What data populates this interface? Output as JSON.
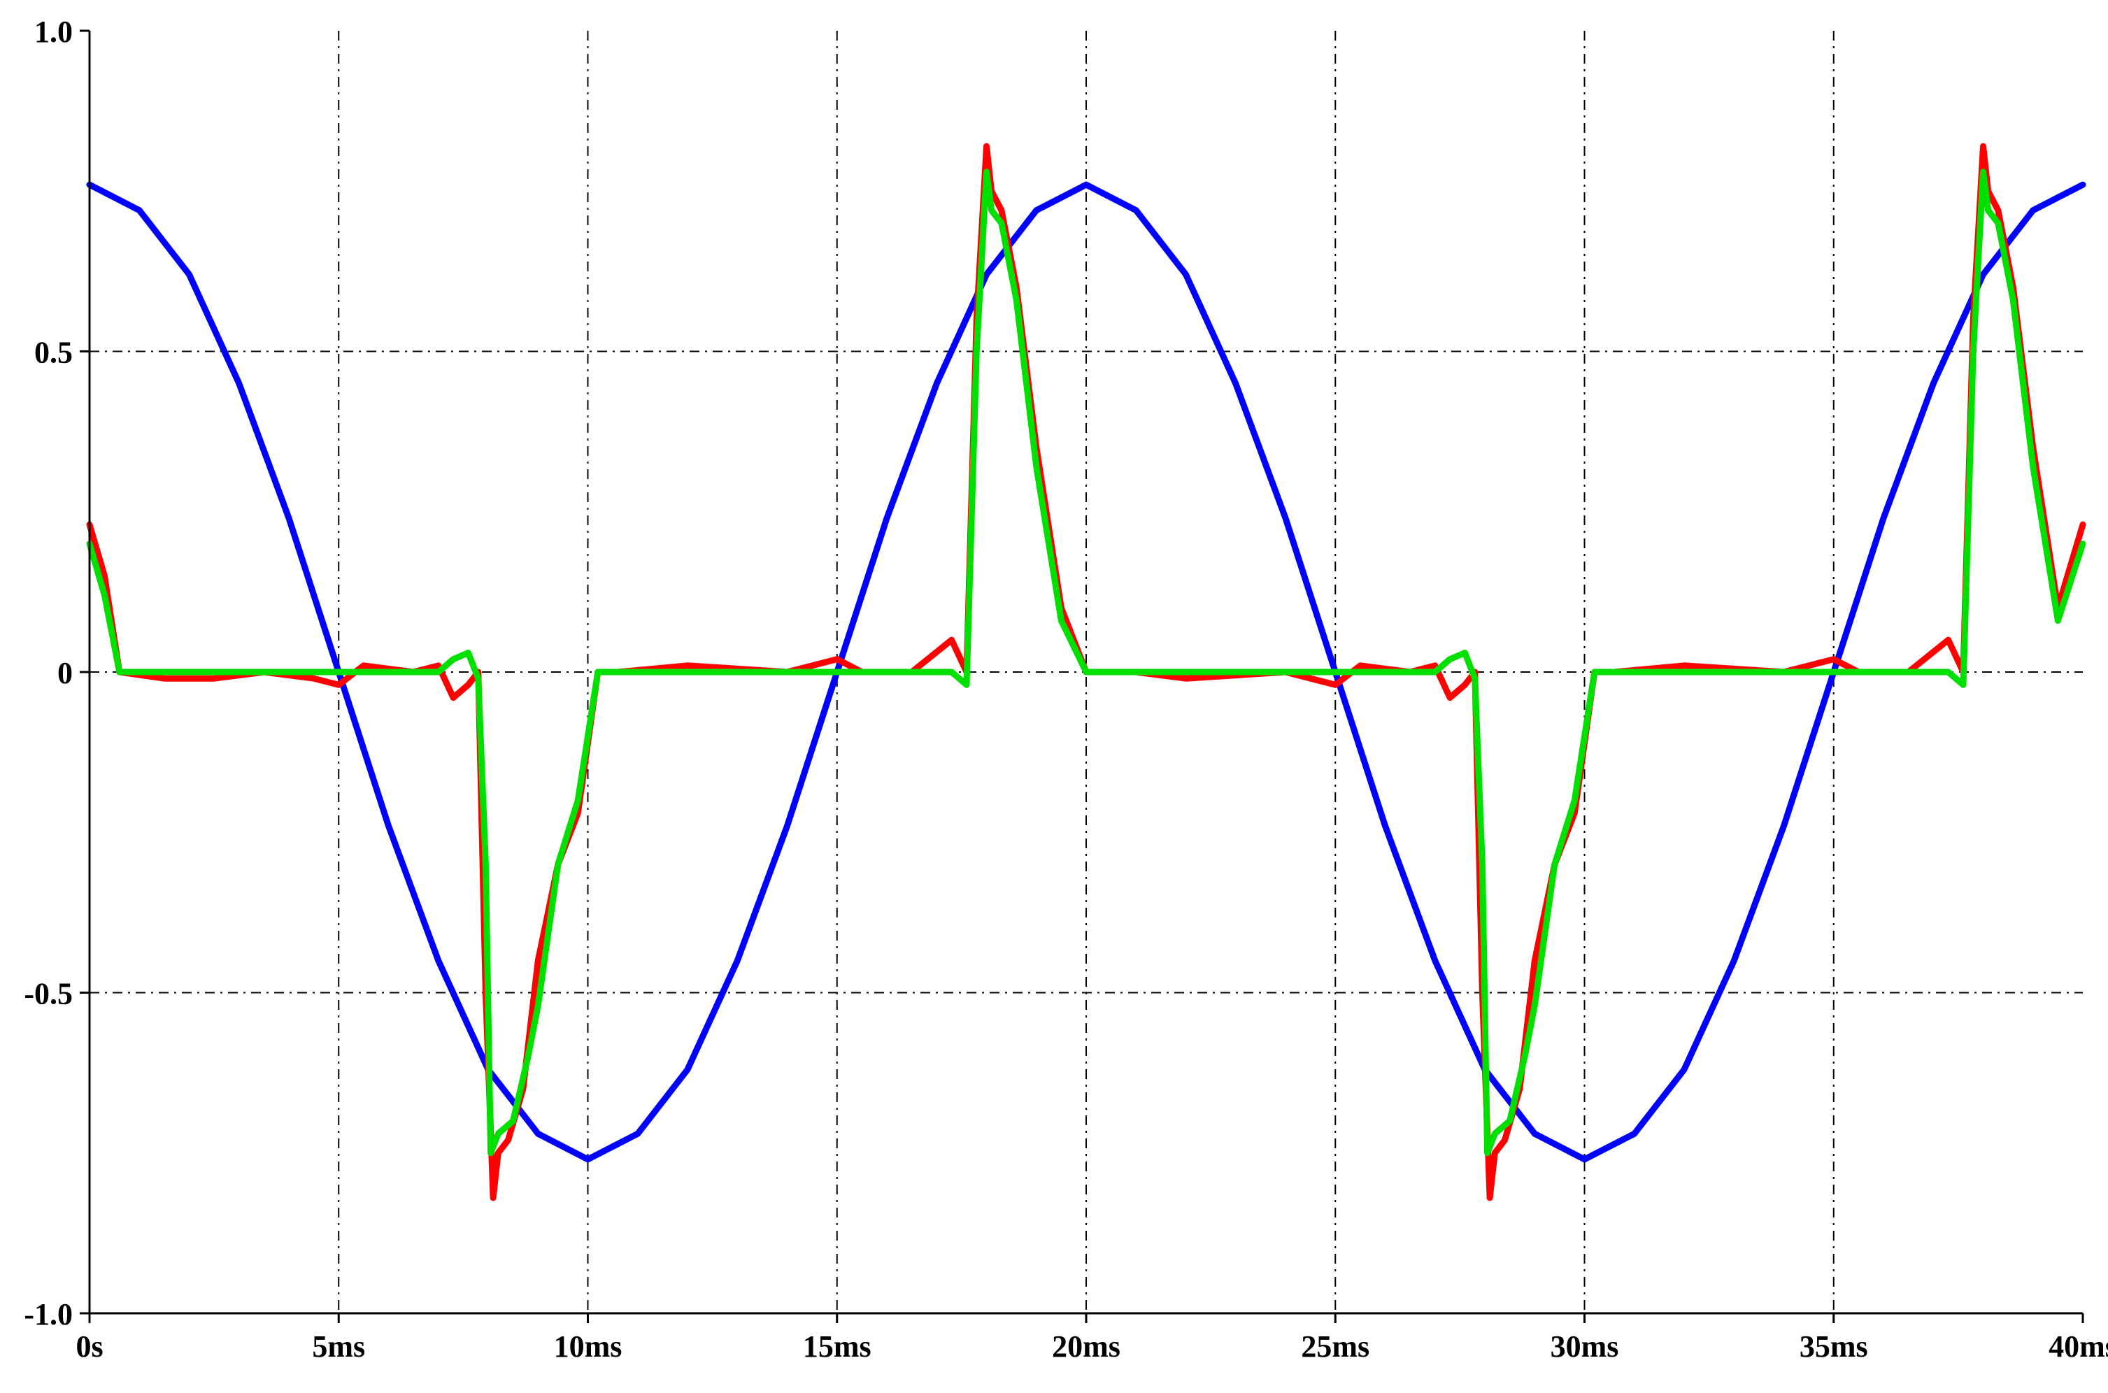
{
  "chart_data": {
    "type": "line",
    "title": "",
    "xlabel": "",
    "ylabel": "",
    "xlim": [
      0,
      40
    ],
    "ylim": [
      -1.0,
      1.0
    ],
    "x_ticks": [
      {
        "value": 0,
        "label": "0s"
      },
      {
        "value": 5,
        "label": "5ms"
      },
      {
        "value": 10,
        "label": "10ms"
      },
      {
        "value": 15,
        "label": "15ms"
      },
      {
        "value": 20,
        "label": "20ms"
      },
      {
        "value": 25,
        "label": "25ms"
      },
      {
        "value": 30,
        "label": "30ms"
      },
      {
        "value": 35,
        "label": "35ms"
      },
      {
        "value": 40,
        "label": "40ms"
      }
    ],
    "y_ticks": [
      {
        "value": 1.0,
        "label": "1.0"
      },
      {
        "value": 0.5,
        "label": "0.5"
      },
      {
        "value": 0,
        "label": "0"
      },
      {
        "value": -0.5,
        "label": "-0.5"
      },
      {
        "value": -1.0,
        "label": "-1.0"
      }
    ],
    "grid": true,
    "grid_style": "dash-dot",
    "series": [
      {
        "color": "#0000ff",
        "x": [
          0,
          1,
          2,
          3,
          4,
          5,
          6,
          7,
          8,
          9,
          10,
          11,
          12,
          13,
          14,
          15,
          16,
          17,
          18,
          19,
          20,
          21,
          22,
          23,
          24,
          25,
          26,
          27,
          28,
          29,
          30,
          31,
          32,
          33,
          34,
          35,
          36,
          37,
          38,
          39,
          40
        ],
        "y": [
          0.76,
          0.72,
          0.62,
          0.45,
          0.24,
          0.0,
          -0.24,
          -0.45,
          -0.62,
          -0.72,
          -0.76,
          -0.72,
          -0.62,
          -0.45,
          -0.24,
          0.0,
          0.24,
          0.45,
          0.62,
          0.72,
          0.76,
          0.72,
          0.62,
          0.45,
          0.24,
          0.0,
          -0.24,
          -0.45,
          -0.62,
          -0.72,
          -0.76,
          -0.72,
          -0.62,
          -0.45,
          -0.24,
          0.0,
          0.24,
          0.45,
          0.62,
          0.72,
          0.76
        ]
      },
      {
        "color": "#ff0000",
        "x": [
          0,
          0.3,
          0.6,
          1.5,
          2.5,
          3.5,
          4.5,
          5.0,
          5.5,
          6.5,
          7.0,
          7.3,
          7.6,
          7.8,
          7.95,
          8.1,
          8.2,
          8.4,
          8.7,
          9.0,
          9.4,
          9.8,
          10.2,
          10.6,
          12,
          14,
          15,
          15.5,
          16.5,
          17.3,
          17.6,
          17.8,
          18.0,
          18.1,
          18.3,
          18.6,
          19.0,
          19.5,
          20.0,
          20.5,
          21,
          22,
          24,
          25,
          25.5,
          26.5,
          27.0,
          27.3,
          27.6,
          27.8,
          27.95,
          28.1,
          28.2,
          28.4,
          28.7,
          29.0,
          29.4,
          29.8,
          30.2,
          30.6,
          32,
          34,
          35,
          35.5,
          36.5,
          37.3,
          37.6,
          37.8,
          38.0,
          38.1,
          38.3,
          38.6,
          39.0,
          39.5,
          40.0
        ],
        "y": [
          0.23,
          0.15,
          0.0,
          -0.01,
          -0.01,
          0.0,
          -0.01,
          -0.02,
          0.01,
          0.0,
          0.01,
          -0.04,
          -0.02,
          0.0,
          -0.5,
          -0.82,
          -0.75,
          -0.73,
          -0.65,
          -0.45,
          -0.3,
          -0.22,
          0.0,
          0.0,
          0.01,
          0.0,
          0.02,
          0.0,
          0.0,
          0.05,
          0.0,
          0.55,
          0.82,
          0.75,
          0.72,
          0.6,
          0.35,
          0.1,
          0.0,
          0.0,
          0.0,
          -0.01,
          0.0,
          -0.02,
          0.01,
          0.0,
          0.01,
          -0.04,
          -0.02,
          0.0,
          -0.5,
          -0.82,
          -0.75,
          -0.73,
          -0.65,
          -0.45,
          -0.3,
          -0.22,
          0.0,
          0.0,
          0.01,
          0.0,
          0.02,
          0.0,
          0.0,
          0.05,
          0.0,
          0.55,
          0.82,
          0.75,
          0.72,
          0.6,
          0.35,
          0.1,
          0.23
        ]
      },
      {
        "color": "#00e000",
        "x": [
          0,
          0.3,
          0.6,
          1.5,
          2.5,
          3.5,
          4.5,
          5.0,
          5.5,
          6.5,
          7.0,
          7.3,
          7.6,
          7.8,
          7.95,
          8.05,
          8.2,
          8.5,
          8.8,
          9.0,
          9.4,
          9.8,
          10.2,
          10.6,
          12,
          14,
          15,
          15.5,
          16.5,
          17.3,
          17.6,
          17.8,
          18.0,
          18.1,
          18.3,
          18.6,
          19.0,
          19.5,
          20.0,
          20.5,
          21,
          22,
          24,
          25,
          25.5,
          26.5,
          27.0,
          27.3,
          27.6,
          27.8,
          27.95,
          28.05,
          28.2,
          28.5,
          28.8,
          29.0,
          29.4,
          29.8,
          30.2,
          30.6,
          32,
          34,
          35,
          35.5,
          36.5,
          37.3,
          37.6,
          37.8,
          38.0,
          38.1,
          38.3,
          38.6,
          39.0,
          39.5,
          40.0
        ],
        "y": [
          0.2,
          0.12,
          0.0,
          0.0,
          0.0,
          0.0,
          0.0,
          0.0,
          0.0,
          0.0,
          0.0,
          0.02,
          0.03,
          -0.01,
          -0.3,
          -0.75,
          -0.72,
          -0.7,
          -0.6,
          -0.52,
          -0.3,
          -0.2,
          0.0,
          0.0,
          0.0,
          0.0,
          0.0,
          0.0,
          0.0,
          0.0,
          -0.02,
          0.5,
          0.78,
          0.72,
          0.7,
          0.58,
          0.32,
          0.08,
          0.0,
          0.0,
          0.0,
          0.0,
          0.0,
          0.0,
          0.0,
          0.0,
          0.0,
          0.02,
          0.03,
          -0.01,
          -0.3,
          -0.75,
          -0.72,
          -0.7,
          -0.6,
          -0.52,
          -0.3,
          -0.2,
          0.0,
          0.0,
          0.0,
          0.0,
          0.0,
          0.0,
          0.0,
          0.0,
          -0.02,
          0.5,
          0.78,
          0.72,
          0.7,
          0.58,
          0.32,
          0.08,
          0.2
        ]
      }
    ]
  }
}
